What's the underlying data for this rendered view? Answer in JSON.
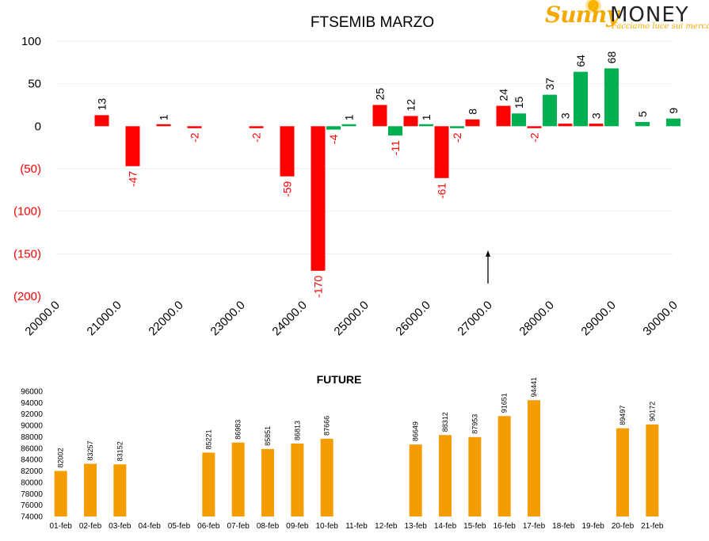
{
  "logo": {
    "name_part1": "Sunny",
    "name_part2": "MONEY",
    "tagline": "Facciamo luce sui mercati"
  },
  "colors": {
    "positive": "#00b050",
    "negative": "#ff0000",
    "future": "#f59c00",
    "text": "#000000"
  },
  "chart_data": [
    {
      "type": "bar",
      "title": "FTSEMIB MARZO",
      "xlabel": "",
      "ylabel": "",
      "ylim": [
        -200,
        100
      ],
      "yticks": [
        100,
        50,
        0,
        -50,
        -100,
        -150,
        -200
      ],
      "ytick_labels": [
        "100",
        "50",
        "0",
        "(50)",
        "(100)",
        "(150)",
        "(200)"
      ],
      "xtick_labels": [
        "20000.0",
        "21000.0",
        "22000.0",
        "23000.0",
        "24000.0",
        "25000.0",
        "26000.0",
        "27000.0",
        "28000.0",
        "29000.0",
        "30000.0"
      ],
      "xlim": [
        20000,
        30000
      ],
      "grid": true,
      "arrow_at_strike": 27000,
      "bars": [
        {
          "strike": 20750,
          "value": 13,
          "color": "red"
        },
        {
          "strike": 21250,
          "value": -47,
          "color": "red"
        },
        {
          "strike": 21750,
          "value": 1,
          "color": "red"
        },
        {
          "strike": 22250,
          "value": -2,
          "color": "red"
        },
        {
          "strike": 23250,
          "value": -2,
          "color": "red"
        },
        {
          "strike": 23750,
          "value": -59,
          "color": "red"
        },
        {
          "strike": 24250,
          "value": -170,
          "color": "red"
        },
        {
          "strike": 24500,
          "value": -4,
          "color": "green"
        },
        {
          "strike": 24750,
          "value": 1,
          "color": "green"
        },
        {
          "strike": 25250,
          "value": 25,
          "color": "red"
        },
        {
          "strike": 25500,
          "value": -11,
          "color": "green"
        },
        {
          "strike": 25750,
          "value": 12,
          "color": "red"
        },
        {
          "strike": 26000,
          "value": 1,
          "color": "green"
        },
        {
          "strike": 26250,
          "value": -61,
          "color": "red"
        },
        {
          "strike": 26500,
          "value": -2,
          "color": "green"
        },
        {
          "strike": 26750,
          "value": 8,
          "color": "red"
        },
        {
          "strike": 27250,
          "value": 24,
          "color": "red"
        },
        {
          "strike": 27500,
          "value": 15,
          "color": "green"
        },
        {
          "strike": 27750,
          "value": -2,
          "color": "red"
        },
        {
          "strike": 28000,
          "value": 37,
          "color": "green"
        },
        {
          "strike": 28250,
          "value": 3,
          "color": "red"
        },
        {
          "strike": 28500,
          "value": 64,
          "color": "green"
        },
        {
          "strike": 28750,
          "value": 3,
          "color": "red"
        },
        {
          "strike": 29000,
          "value": 68,
          "color": "green"
        },
        {
          "strike": 29500,
          "value": 5,
          "color": "green"
        },
        {
          "strike": 30000,
          "value": 9,
          "color": "green"
        }
      ]
    },
    {
      "type": "bar",
      "title": "FUTURE",
      "xlabel": "",
      "ylabel": "",
      "ylim": [
        74000,
        96000
      ],
      "yticks": [
        96000,
        94000,
        92000,
        90000,
        88000,
        86000,
        84000,
        82000,
        80000,
        78000,
        76000,
        74000
      ],
      "ytick_labels": [
        "96000",
        "94000",
        "92000",
        "90000",
        "88000",
        "86000",
        "84000",
        "82000",
        "80000",
        "78000",
        "76000",
        "74000"
      ],
      "grid": false,
      "categories": [
        "01-feb",
        "02-feb",
        "03-feb",
        "04-feb",
        "05-feb",
        "06-feb",
        "07-feb",
        "08-feb",
        "09-feb",
        "10-feb",
        "11-feb",
        "12-feb",
        "13-feb",
        "14-feb",
        "15-feb",
        "16-feb",
        "17-feb",
        "18-feb",
        "19-feb",
        "20-feb",
        "21-feb"
      ],
      "values": [
        82002,
        83257,
        83152,
        null,
        null,
        85221,
        86983,
        85851,
        86813,
        87666,
        null,
        null,
        86649,
        88312,
        87953,
        91651,
        94441,
        null,
        null,
        89497,
        90172
      ]
    }
  ]
}
